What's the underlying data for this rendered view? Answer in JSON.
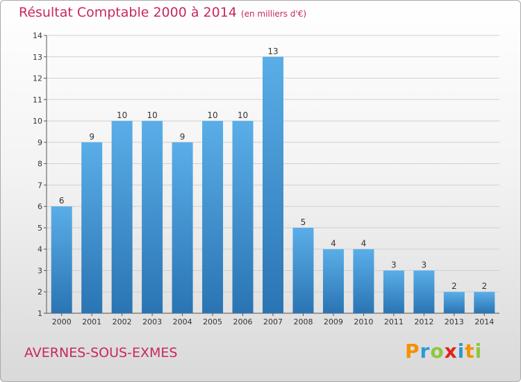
{
  "title": "Résultat Comptable 2000 à 2014",
  "subtitle": "(en milliers d'€)",
  "town": "AVERNES-SOUS-EXMES",
  "brand": {
    "text": "Proxiti",
    "letters": [
      {
        "char": "P",
        "color": "#f39200"
      },
      {
        "char": "r",
        "color": "#2a9bd7"
      },
      {
        "char": "o",
        "color": "#8dc63f"
      },
      {
        "char": "x",
        "color": "#e2231a"
      },
      {
        "char": "i",
        "color": "#2a9bd7"
      },
      {
        "char": "t",
        "color": "#f39200"
      },
      {
        "char": "i",
        "color": "#8dc63f"
      }
    ]
  },
  "colors": {
    "accent": "#c8285a",
    "bar_top": "#5aaee8",
    "bar_bottom": "#2a74b3",
    "grid": "#cfcfcf"
  },
  "chart_data": {
    "type": "bar",
    "title": "Résultat Comptable 2000 à 2014",
    "subtitle": "(en milliers d'€)",
    "categories": [
      "2000",
      "2001",
      "2002",
      "2003",
      "2004",
      "2005",
      "2006",
      "2007",
      "2008",
      "2009",
      "2010",
      "2011",
      "2012",
      "2013",
      "2014"
    ],
    "values": [
      6,
      9,
      10,
      10,
      9,
      10,
      10,
      13,
      5,
      4,
      4,
      3,
      3,
      2,
      2
    ],
    "ylim": [
      1,
      14
    ],
    "yticks": [
      1,
      2,
      3,
      4,
      5,
      6,
      7,
      8,
      9,
      10,
      11,
      12,
      13,
      14
    ],
    "grid": true,
    "data_labels": true
  }
}
